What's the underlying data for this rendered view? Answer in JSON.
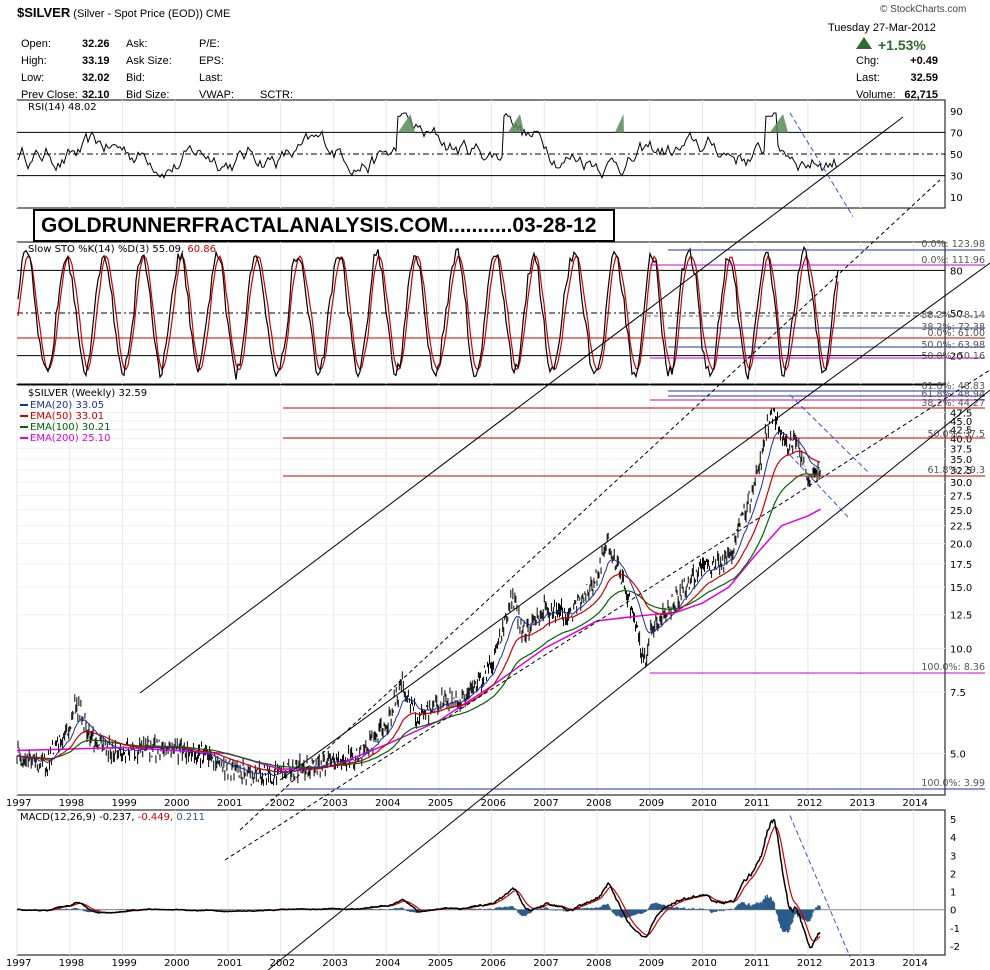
{
  "header": {
    "symbol": "$SILVER",
    "name": "(Silver - Spot Price (EOD))",
    "exchange": "CME",
    "watermark": "© StockCharts.com",
    "date": "Tuesday  27-Mar-2012",
    "pct_change": "+1.53%",
    "quotes": [
      {
        "label": "Open:",
        "value": "32.26"
      },
      {
        "label": "High:",
        "value": "33.19"
      },
      {
        "label": "Low:",
        "value": "32.02"
      },
      {
        "label": "Prev Close:",
        "value": "32.10"
      }
    ],
    "col2": [
      "Ask:",
      "Ask Size:",
      "Bid:",
      "Bid Size:"
    ],
    "col3": [
      "P/E:",
      "EPS:",
      "Last:",
      "VWAP:"
    ],
    "sctr": "SCTR:",
    "right": [
      {
        "label": "Chg:",
        "value": "+0.49"
      },
      {
        "label": "Last:",
        "value": "32.59"
      },
      {
        "label": "Volume:",
        "value": "62,715"
      }
    ],
    "colors": {
      "up": "#2e6b2e"
    }
  },
  "banner": "GOLDRUNNERFRACTALANALYSIS.COM...........03-28-12",
  "chart_data": [
    {
      "type": "line",
      "id": "rsi",
      "legend": "RSI(14) 48.02",
      "y_ticks": [
        90,
        70,
        50,
        30,
        10
      ],
      "ylim": [
        0,
        100
      ],
      "ref_lines": [
        70,
        50,
        30
      ],
      "colors": {
        "line": "#000000",
        "fill": "#5a8a5a"
      }
    },
    {
      "type": "line",
      "id": "stochastic",
      "legend_prefix": "Slow STO %K(14) %D(3) 55.09, ",
      "legend_value": "60.86",
      "y_ticks": [
        80,
        50,
        20
      ],
      "ylim": [
        0,
        100
      ],
      "fib_labels": [
        "0.0%: 123.98",
        "0.0%: 111.96",
        "38.2%: 78.14",
        "38.2%: 72.38",
        "0.0%: 61.00",
        "50.0%: 63.98",
        "50.0%: 50.16"
      ],
      "colors": {
        "k": "#000000",
        "d": "#cc0000"
      }
    },
    {
      "type": "line",
      "id": "price",
      "legend": "$SILVER (Weekly) 32.59",
      "scale": "log",
      "ylim": [
        3.8,
        57
      ],
      "y_ticks": [
        5.0,
        7.5,
        10.0,
        12.5,
        15.0,
        17.5,
        20.0,
        22.5,
        25.0,
        27.5,
        30.0,
        32.5,
        35.0,
        37.5,
        40.0,
        42.5,
        45.0,
        47.5
      ],
      "x_ticks": [
        "1997",
        "1998",
        "1999",
        "2000",
        "2001",
        "2002",
        "2003",
        "2004",
        "2005",
        "2006",
        "2007",
        "2008",
        "2009",
        "2010",
        "2011",
        "2012",
        "2013",
        "2014"
      ],
      "ema_legend": [
        {
          "label": "EMA(20) 33.05",
          "color": "#1f2fa0"
        },
        {
          "label": "EMA(50) 33.01",
          "color": "#cc0000"
        },
        {
          "label": "EMA(100) 30.21",
          "color": "#006400"
        },
        {
          "label": "EMA(200) 25.10",
          "color": "#e000e0"
        }
      ],
      "fib_labels": [
        "61.8%: 48.83",
        "61.8%: 48.94",
        "38.2%: 44.27",
        "50.0%: 37.5",
        "61.8%: 29.3",
        "100.0%: 8.36",
        "100.0%: 3.99"
      ],
      "series_close": {
        "x": [
          1997.0,
          1997.5,
          1998.0,
          1998.1,
          1998.5,
          1999.0,
          1999.5,
          2000.0,
          2000.5,
          2001.0,
          2001.5,
          2001.9,
          2002.5,
          2003.0,
          2003.5,
          2004.0,
          2004.3,
          2004.6,
          2005.0,
          2005.5,
          2006.0,
          2006.4,
          2006.6,
          2007.0,
          2007.5,
          2008.0,
          2008.2,
          2008.6,
          2008.9,
          2009.0,
          2009.5,
          2010.0,
          2010.5,
          2011.0,
          2011.3,
          2011.6,
          2011.75,
          2012.0,
          2012.24
        ],
        "y": [
          5.0,
          4.6,
          5.9,
          7.0,
          5.3,
          5.0,
          5.2,
          5.2,
          5.0,
          4.5,
          4.3,
          4.4,
          4.6,
          4.7,
          4.9,
          6.0,
          8.0,
          6.2,
          7.0,
          7.2,
          9.0,
          14.0,
          11.0,
          13.0,
          12.5,
          16.0,
          20.0,
          14.0,
          9.0,
          11.0,
          14.0,
          17.0,
          18.0,
          30.0,
          48.0,
          38.0,
          40.0,
          30.0,
          32.59
        ]
      },
      "ema200": {
        "x": [
          1997.0,
          1999.0,
          2001.0,
          2002.0,
          2003.0,
          2004.0,
          2005.0,
          2006.0,
          2007.0,
          2008.0,
          2008.8,
          2009.5,
          2010.0,
          2010.5,
          2011.0,
          2011.5,
          2012.0,
          2012.24
        ],
        "y": [
          5.1,
          5.2,
          5.0,
          4.5,
          4.6,
          5.3,
          6.2,
          7.8,
          10.0,
          12.0,
          12.4,
          12.7,
          13.5,
          15.0,
          18.5,
          22.5,
          24.0,
          25.1
        ]
      }
    },
    {
      "type": "bar",
      "id": "macd",
      "legend_prefix": "MACD(12,26,9) -0.237, ",
      "legend_signal": "-0.449",
      "legend_hist": "0.211",
      "y_ticks": [
        5,
        4,
        3,
        2,
        1,
        0,
        -1,
        -2
      ],
      "ylim": [
        -2.5,
        5.5
      ],
      "x_ticks": [
        "1997",
        "1998",
        "1999",
        "2000",
        "2001",
        "2002",
        "2003",
        "2004",
        "2005",
        "2006",
        "2007",
        "2008",
        "2009",
        "2010",
        "2011",
        "2012",
        "2013",
        "2014"
      ],
      "colors": {
        "macd": "#000000",
        "signal": "#cc0000",
        "hist": "#2b5b8a"
      }
    }
  ]
}
